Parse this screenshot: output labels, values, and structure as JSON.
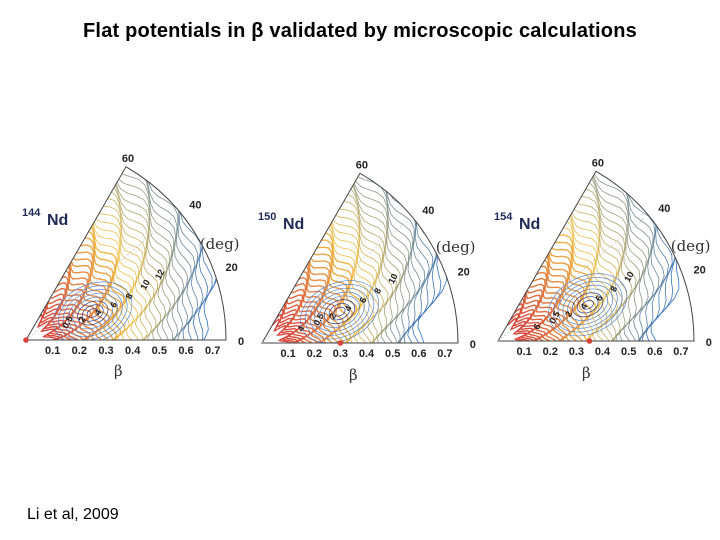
{
  "slide": {
    "title": "Flat potentials in β validated by microscopic calculations",
    "citation": "Li et al, 2009"
  },
  "panels": [
    {
      "id": "nd144",
      "mass": "144",
      "element": "Nd",
      "beta_ticks": [
        "0.1",
        "0.2",
        "0.3",
        "0.4",
        "0.5",
        "0.6",
        "0.7"
      ],
      "gamma_ticks": [
        "0",
        "20",
        "40",
        "60"
      ],
      "gamma_label": "γ (deg)",
      "beta_label": "β",
      "contour_labels": [
        "12",
        "10",
        "8",
        "6",
        "4",
        "2",
        "0.5"
      ],
      "minimum_beta": 0.0
    },
    {
      "id": "nd150",
      "mass": "150",
      "element": "Nd",
      "beta_ticks": [
        "0.1",
        "0.2",
        "0.3",
        "0.4",
        "0.5",
        "0.6",
        "0.7"
      ],
      "gamma_ticks": [
        "0",
        "20",
        "40",
        "60"
      ],
      "gamma_label": "γ (deg)",
      "beta_label": "β",
      "contour_labels": [
        "10",
        "8",
        "6",
        "4",
        "2",
        "0.5",
        "4"
      ],
      "minimum_beta": 0.3
    },
    {
      "id": "nd154",
      "mass": "154",
      "element": "Nd",
      "beta_ticks": [
        "0.1",
        "0.2",
        "0.3",
        "0.4",
        "0.5",
        "0.6",
        "0.7"
      ],
      "gamma_ticks": [
        "0",
        "20",
        "40",
        "60"
      ],
      "gamma_label": "γ (deg)",
      "beta_label": "β",
      "contour_labels": [
        "10",
        "8",
        "6",
        "4",
        "2",
        "0.5",
        "6"
      ],
      "minimum_beta": 0.35
    }
  ],
  "colors": {
    "high_energy": "#d9423a",
    "mid_energy": "#f2c44a",
    "low_energy": "#2f6fc2",
    "minimum_marker": "#d9423a"
  }
}
